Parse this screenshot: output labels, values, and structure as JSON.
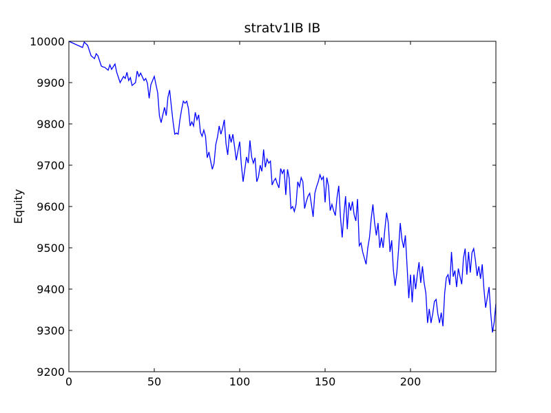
{
  "chart_data": {
    "type": "line",
    "title": "stratv1IB IB",
    "y_label": "Equity",
    "color": "#0000ff",
    "xlim": [
      0,
      250
    ],
    "xticks": [
      0,
      50,
      100,
      150,
      200
    ],
    "ylim": [
      9200,
      10000
    ],
    "yticks": [
      9200,
      9300,
      9400,
      9500,
      9600,
      9700,
      9800,
      9900,
      10000
    ],
    "x": [
      0,
      8,
      9,
      11,
      13,
      15,
      16,
      17,
      19,
      20,
      21,
      23,
      24,
      25,
      27,
      28,
      30,
      32,
      33,
      34,
      35,
      36,
      37,
      39,
      40,
      41,
      42,
      44,
      45,
      46,
      47,
      48,
      49,
      50,
      52,
      53,
      54,
      55,
      56,
      57,
      58,
      59,
      60,
      61,
      62,
      63,
      64,
      65,
      66,
      67,
      68,
      69,
      70,
      71,
      72,
      73,
      74,
      75,
      76,
      77,
      78,
      79,
      80,
      81,
      82,
      83,
      84,
      85,
      86,
      87,
      88,
      89,
      90,
      91,
      92,
      93,
      94,
      95,
      96,
      97,
      98,
      99,
      100,
      101,
      102,
      103,
      104,
      105,
      106,
      107,
      108,
      109,
      110,
      111,
      112,
      113,
      114,
      115,
      116,
      117,
      118,
      119,
      120,
      121,
      122,
      123,
      124,
      125,
      126,
      127,
      128,
      129,
      130,
      131,
      132,
      133,
      134,
      135,
      136,
      137,
      138,
      139,
      140,
      141,
      142,
      143,
      144,
      145,
      146,
      147,
      148,
      149,
      150,
      151,
      152,
      153,
      154,
      155,
      156,
      157,
      158,
      159,
      160,
      161,
      162,
      163,
      164,
      165,
      166,
      167,
      168,
      169,
      170,
      171,
      172,
      173,
      174,
      175,
      176,
      177,
      178,
      179,
      180,
      181,
      182,
      183,
      184,
      185,
      186,
      187,
      188,
      189,
      190,
      191,
      192,
      193,
      194,
      195,
      196,
      197,
      198,
      199,
      200,
      201,
      202,
      203,
      204,
      205,
      206,
      207,
      208,
      209,
      210,
      211,
      212,
      213,
      214,
      215,
      216,
      217,
      218,
      219,
      220,
      221,
      222,
      223,
      224,
      225,
      226,
      227,
      228,
      229,
      230,
      231,
      232,
      233,
      234,
      235,
      236,
      237,
      238,
      239,
      240,
      241,
      242,
      243,
      244,
      245,
      246,
      247,
      248,
      249,
      250
    ],
    "values": [
      10000,
      9985,
      9998,
      9990,
      9965,
      9958,
      9970,
      9965,
      9940,
      9938,
      9937,
      9930,
      9943,
      9932,
      9945,
      9925,
      9900,
      9915,
      9910,
      9925,
      9905,
      9912,
      9893,
      9900,
      9928,
      9915,
      9923,
      9905,
      9910,
      9898,
      9862,
      9895,
      9905,
      9915,
      9875,
      9820,
      9803,
      9822,
      9840,
      9820,
      9865,
      9882,
      9842,
      9805,
      9775,
      9778,
      9775,
      9810,
      9835,
      9855,
      9850,
      9855,
      9837,
      9795,
      9805,
      9795,
      9828,
      9810,
      9822,
      9780,
      9770,
      9785,
      9770,
      9718,
      9732,
      9710,
      9690,
      9705,
      9750,
      9768,
      9795,
      9775,
      9790,
      9810,
      9752,
      9725,
      9775,
      9755,
      9775,
      9745,
      9712,
      9735,
      9757,
      9700,
      9660,
      9690,
      9720,
      9705,
      9760,
      9720,
      9705,
      9718,
      9660,
      9672,
      9700,
      9685,
      9738,
      9695,
      9715,
      9705,
      9710,
      9652,
      9662,
      9668,
      9655,
      9645,
      9692,
      9680,
      9690,
      9628,
      9690,
      9668,
      9595,
      9600,
      9588,
      9605,
      9660,
      9648,
      9670,
      9660,
      9595,
      9612,
      9625,
      9632,
      9605,
      9575,
      9632,
      9648,
      9660,
      9677,
      9665,
      9672,
      9610,
      9670,
      9650,
      9590,
      9605,
      9590,
      9578,
      9622,
      9650,
      9575,
      9525,
      9580,
      9625,
      9545,
      9610,
      9590,
      9612,
      9580,
      9565,
      9618,
      9505,
      9512,
      9490,
      9475,
      9460,
      9500,
      9525,
      9570,
      9605,
      9560,
      9530,
      9560,
      9500,
      9525,
      9500,
      9545,
      9585,
      9560,
      9490,
      9518,
      9445,
      9408,
      9440,
      9495,
      9560,
      9520,
      9500,
      9530,
      9455,
      9378,
      9435,
      9368,
      9435,
      9400,
      9435,
      9465,
      9415,
      9455,
      9415,
      9390,
      9318,
      9352,
      9318,
      9340,
      9370,
      9375,
      9340,
      9318,
      9343,
      9310,
      9390,
      9428,
      9435,
      9410,
      9490,
      9430,
      9445,
      9405,
      9450,
      9430,
      9412,
      9475,
      9498,
      9435,
      9490,
      9440,
      9488,
      9498,
      9470,
      9432,
      9455,
      9425,
      9460,
      9400,
      9355,
      9380,
      9405,
      9340,
      9295,
      9320,
      9365
    ]
  }
}
